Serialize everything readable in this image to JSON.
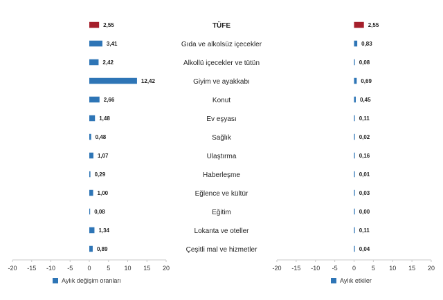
{
  "chart_data": {
    "type": "bar",
    "orientation": "horizontal",
    "categories": [
      "TÜFE",
      "Gıda ve alkolsüz içecekler",
      "Alkollü içecekler ve tütün",
      "Giyim ve ayakkabı",
      "Konut",
      "Ev eşyası",
      "Sağlık",
      "Ulaştırma",
      "Haberleşme",
      "Eğlence ve kültür",
      "Eğitim",
      "Lokanta ve oteller",
      "Çeşitli mal ve hizmetler"
    ],
    "highlight_category": "TÜFE",
    "highlight_color": "#a51f2b",
    "bar_color": "#2e75b6",
    "xlim": [
      -20,
      20
    ],
    "xticks": [
      "-20",
      "-15",
      "-10",
      "-5",
      "0",
      "5",
      "10",
      "15",
      "20"
    ],
    "grid": false,
    "series": [
      {
        "name": "Aylık değişim oranları",
        "values": [
          2.55,
          3.41,
          2.42,
          12.42,
          2.66,
          1.48,
          0.48,
          1.07,
          0.29,
          1.0,
          0.08,
          1.34,
          0.89
        ],
        "labels": [
          "2,55",
          "3,41",
          "2,42",
          "12,42",
          "2,66",
          "1,48",
          "0,48",
          "1,07",
          "0,29",
          "1,00",
          "0,08",
          "1,34",
          "0,89"
        ]
      },
      {
        "name": "Aylık etkiler",
        "values": [
          2.55,
          0.83,
          0.08,
          0.69,
          0.45,
          0.11,
          0.02,
          0.16,
          0.01,
          0.03,
          0.0,
          0.11,
          0.04
        ],
        "labels": [
          "2,55",
          "0,83",
          "0,08",
          "0,69",
          "0,45",
          "0,11",
          "0,02",
          "0,16",
          "0,01",
          "0,03",
          "0,00",
          "0,11",
          "0,04"
        ]
      }
    ]
  }
}
